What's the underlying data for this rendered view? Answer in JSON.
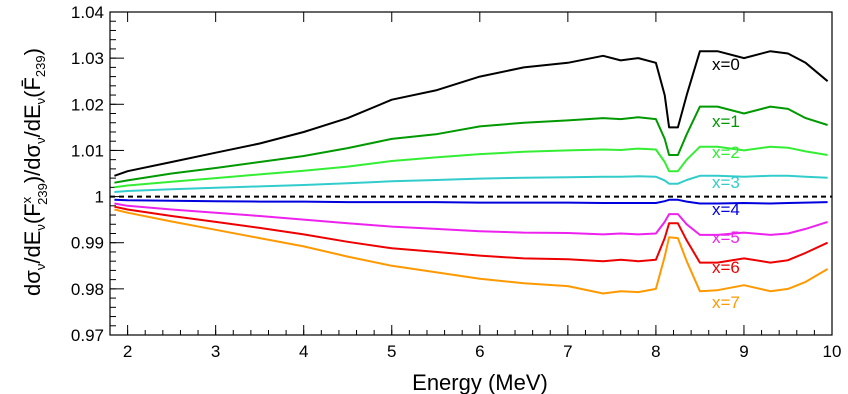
{
  "chart_data": {
    "type": "line",
    "title": "",
    "xlabel": "Energy (MeV)",
    "ylabel_parts": {
      "prefix": "dσ",
      "nu": "ν",
      "mid1": "/dE",
      "open": "(F",
      "sup": "x",
      "sub": "239",
      "mid2": ")/dσ",
      "mid3": "/dE",
      "open2": "(",
      "fbar": "F̄",
      "sub2": "239",
      "close": ")"
    },
    "xlim": [
      1.8,
      10
    ],
    "ylim": [
      0.97,
      1.04
    ],
    "xticks": [
      2,
      3,
      4,
      5,
      6,
      7,
      8,
      9,
      10
    ],
    "yticks": [
      0.97,
      0.98,
      0.99,
      1,
      1.01,
      1.02,
      1.03,
      1.04
    ],
    "ytick_labels": [
      "0.97",
      "0.98",
      "0.99",
      "1",
      "1.01",
      "1.02",
      "1.03",
      "1.04"
    ],
    "reference_line": {
      "y": 1.0,
      "style": "dashed",
      "color": "#000000"
    },
    "x": [
      1.85,
      2.0,
      2.5,
      3.0,
      3.5,
      4.0,
      4.5,
      5.0,
      5.5,
      6.0,
      6.5,
      7.0,
      7.4,
      7.6,
      7.8,
      8.0,
      8.1,
      8.15,
      8.25,
      8.35,
      8.5,
      8.7,
      9.0,
      9.3,
      9.5,
      9.7,
      9.95
    ],
    "series": [
      {
        "name": "x=0",
        "color": "#000000",
        "values": [
          1.0045,
          1.0055,
          1.0075,
          1.0095,
          1.0115,
          1.014,
          1.017,
          1.021,
          1.023,
          1.026,
          1.028,
          1.029,
          1.0305,
          1.0295,
          1.03,
          1.029,
          1.022,
          1.015,
          1.015,
          1.022,
          1.0315,
          1.0315,
          1.03,
          1.0315,
          1.031,
          1.029,
          1.025
        ]
      },
      {
        "name": "x=1",
        "color": "#009900",
        "values": [
          1.003,
          1.0035,
          1.005,
          1.0062,
          1.0075,
          1.0088,
          1.0105,
          1.0125,
          1.0135,
          1.0152,
          1.016,
          1.0165,
          1.017,
          1.0168,
          1.0172,
          1.0168,
          1.0125,
          1.009,
          1.009,
          1.0135,
          1.0195,
          1.0195,
          1.018,
          1.0195,
          1.019,
          1.017,
          1.0155
        ]
      },
      {
        "name": "x=2",
        "color": "#33ee33",
        "values": [
          1.002,
          1.0024,
          1.0032,
          1.004,
          1.0048,
          1.0056,
          1.0065,
          1.0077,
          1.0085,
          1.0092,
          1.0097,
          1.01,
          1.0102,
          1.0101,
          1.0104,
          1.0102,
          1.0075,
          1.0055,
          1.0055,
          1.008,
          1.0108,
          1.0108,
          1.01,
          1.0108,
          1.0106,
          1.0098,
          1.009
        ]
      },
      {
        "name": "x=3",
        "color": "#33cccc",
        "values": [
          1.001,
          1.0012,
          1.0016,
          1.0019,
          1.0022,
          1.0025,
          1.0029,
          1.0033,
          1.0036,
          1.0039,
          1.0041,
          1.0042,
          1.0043,
          1.0043,
          1.0044,
          1.0043,
          1.0035,
          1.0028,
          1.0028,
          1.0036,
          1.0045,
          1.0045,
          1.0043,
          1.0045,
          1.0045,
          1.0043,
          1.0041
        ]
      },
      {
        "name": "x=4",
        "color": "#0000dd",
        "values": [
          0.9993,
          0.9992,
          0.9991,
          0.999,
          0.9989,
          0.9989,
          0.9988,
          0.9988,
          0.9988,
          0.9987,
          0.9987,
          0.9987,
          0.9986,
          0.9986,
          0.9986,
          0.9986,
          0.999,
          0.9993,
          0.9993,
          0.9989,
          0.9985,
          0.9985,
          0.9986,
          0.9985,
          0.9986,
          0.9987,
          0.9988
        ]
      },
      {
        "name": "x=5",
        "color": "#ee22ee",
        "values": [
          0.9985,
          0.998,
          0.9972,
          0.9965,
          0.9958,
          0.995,
          0.9942,
          0.9935,
          0.993,
          0.9925,
          0.9922,
          0.9921,
          0.9918,
          0.992,
          0.9918,
          0.992,
          0.9945,
          0.9962,
          0.9962,
          0.994,
          0.9917,
          0.9917,
          0.9922,
          0.9917,
          0.992,
          0.993,
          0.9945
        ]
      },
      {
        "name": "x=6",
        "color": "#ee0000",
        "values": [
          0.9978,
          0.9972,
          0.9958,
          0.9945,
          0.9932,
          0.9918,
          0.9902,
          0.9888,
          0.988,
          0.9872,
          0.9866,
          0.9864,
          0.986,
          0.9863,
          0.986,
          0.9863,
          0.991,
          0.9942,
          0.9942,
          0.9905,
          0.9857,
          0.9857,
          0.9866,
          0.9857,
          0.9862,
          0.9878,
          0.99
        ]
      },
      {
        "name": "x=7",
        "color": "#ff9900",
        "values": [
          0.9972,
          0.9965,
          0.9946,
          0.9928,
          0.991,
          0.9892,
          0.987,
          0.985,
          0.9836,
          0.9822,
          0.9812,
          0.9806,
          0.979,
          0.9795,
          0.9793,
          0.98,
          0.987,
          0.9912,
          0.991,
          0.986,
          0.9795,
          0.9797,
          0.9808,
          0.9795,
          0.98,
          0.9815,
          0.9843
        ]
      }
    ]
  }
}
